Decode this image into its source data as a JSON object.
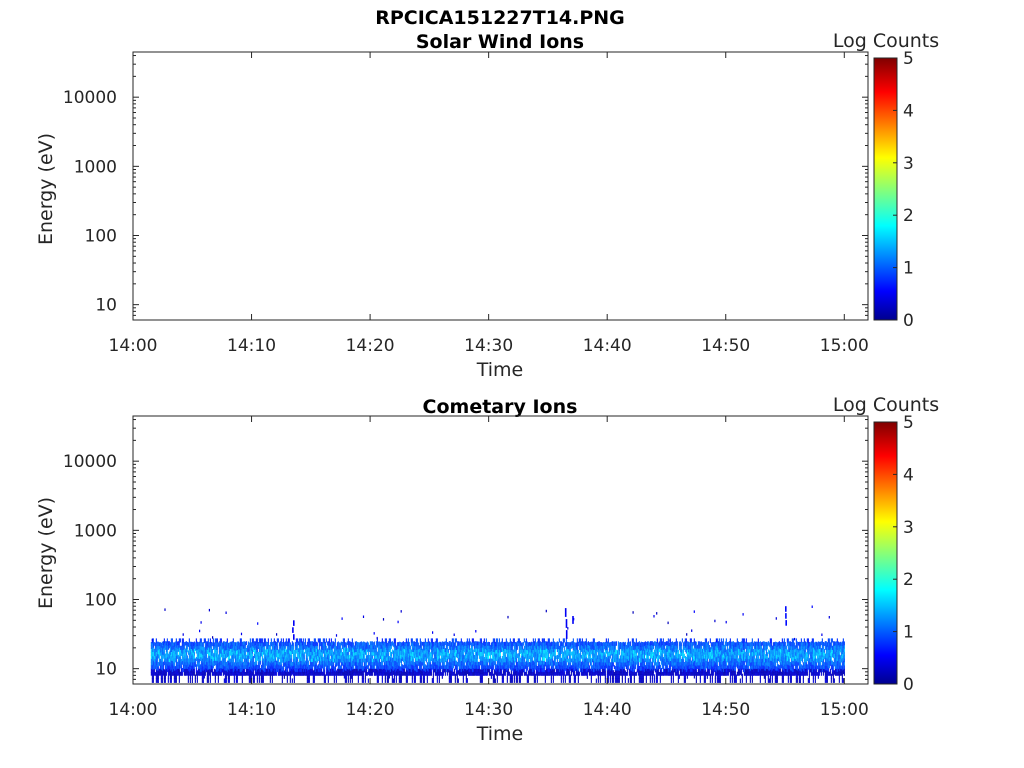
{
  "figure": {
    "title": "RPCICA151227T14.PNG"
  },
  "chart_data": [
    {
      "type": "heatmap",
      "title": "Solar Wind Ions",
      "xlabel": "Time",
      "ylabel": "Energy (eV)",
      "x_ticks": [
        "14:00",
        "14:10",
        "14:20",
        "14:30",
        "14:40",
        "14:50",
        "15:00"
      ],
      "y_ticks": [
        "10",
        "100",
        "1000",
        "10000"
      ],
      "y_scale": "log",
      "xlim": [
        "14:00",
        "15:02"
      ],
      "ylim": [
        6,
        45000
      ],
      "colorbar": {
        "label": "Log Counts",
        "ticks": [
          "0",
          "1",
          "2",
          "3",
          "4",
          "5"
        ],
        "range": [
          0,
          5
        ],
        "colormap": "jet"
      },
      "data": "none"
    },
    {
      "type": "heatmap",
      "title": "Cometary Ions",
      "xlabel": "Time",
      "ylabel": "Energy (eV)",
      "x_ticks": [
        "14:00",
        "14:10",
        "14:20",
        "14:30",
        "14:40",
        "14:50",
        "15:00"
      ],
      "y_ticks": [
        "10",
        "100",
        "1000",
        "10000"
      ],
      "y_scale": "log",
      "xlim": [
        "14:00",
        "15:02"
      ],
      "ylim": [
        6,
        45000
      ],
      "colorbar": {
        "label": "Log Counts",
        "ticks": [
          "0",
          "1",
          "2",
          "3",
          "4",
          "5"
        ],
        "range": [
          0,
          5
        ],
        "colormap": "jet"
      },
      "data": {
        "time_range": [
          "14:01:30",
          "15:00:00"
        ],
        "core_band": {
          "energy_range_eV": [
            8,
            25
          ],
          "log_counts_typical": [
            0.5,
            1.5
          ]
        },
        "bright_core": {
          "energy_eV": 16,
          "log_counts_max": 1.7
        },
        "sparse_spikes": [
          {
            "time": "14:13:30",
            "energy_range_eV": [
              25,
              50
            ],
            "log_counts": 0.5
          },
          {
            "time": "14:23:30",
            "energy_range_eV": [
              25,
              55
            ],
            "log_counts": 0.5
          },
          {
            "time": "14:36:30",
            "energy_range_eV": [
              25,
              75
            ],
            "log_counts": 0.5
          },
          {
            "time": "14:37:00",
            "energy_range_eV": [
              30,
              80
            ],
            "log_counts": 0.5
          },
          {
            "time": "14:55:00",
            "energy_range_eV": [
              40,
              80
            ],
            "log_counts": 0.6
          }
        ]
      }
    }
  ]
}
